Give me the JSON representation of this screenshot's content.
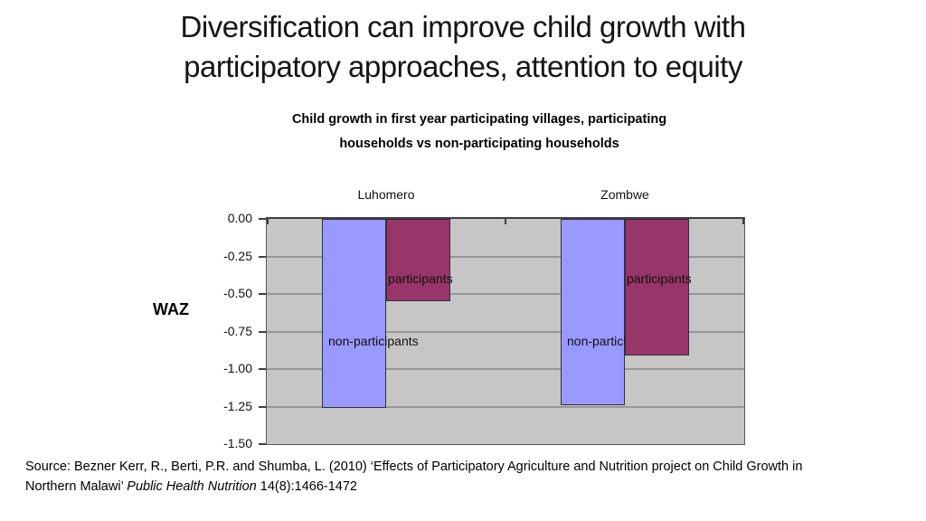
{
  "slide": {
    "title_lines": [
      "Diversification can improve child growth with",
      "participatory approaches, attention to equity"
    ],
    "source_line1": "Source: Bezner Kerr, R.,  Berti, P.R. and Shumba, L. (2010) ‘Effects of Participatory Agriculture and Nutrition project on Child Growth in",
    "source_line2_pre": "Northern Malawi’ ",
    "source_line2_italic": "Public Health Nutrition",
    "source_line2_post": " 14(8):1466-1472"
  },
  "chart_data": {
    "type": "bar",
    "title": "Child growth in first year participating villages, participating households vs non-participating households",
    "title_lines": [
      "Child growth in first year participating villages, participating",
      "households vs non-participating households"
    ],
    "ylabel": "WAZ",
    "categories": [
      "Luhomero",
      "Zombwe"
    ],
    "series": [
      {
        "name": "non-participants",
        "color": "#9999ff",
        "values": [
          -1.26,
          -1.24
        ]
      },
      {
        "name": "participants",
        "color": "#983569",
        "values": [
          -0.55,
          -0.91
        ]
      }
    ],
    "ylim": [
      -1.5,
      0
    ],
    "yticks": [
      "0.00",
      "-0.25",
      "-0.50",
      "-0.75",
      "-1.00",
      "-1.25",
      "-1.50"
    ],
    "grid": true,
    "legend": "labels-on-bars",
    "plot_bg": "#c6c6c6",
    "gridline_color": "#979797",
    "axis_color": "#404040"
  }
}
